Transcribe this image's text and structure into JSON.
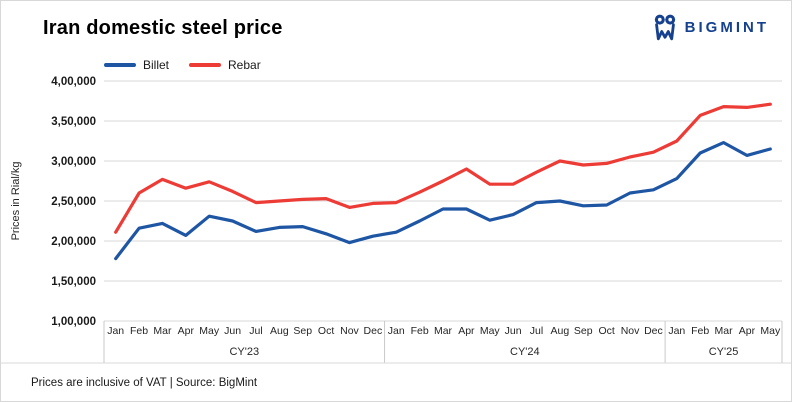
{
  "header": {
    "title": "Iran domestic steel price",
    "brand": "BIGMINT",
    "brand_color": "#15418f"
  },
  "footer": {
    "note": "Prices are inclusive of VAT |  Source: BigMint"
  },
  "chart_data": {
    "type": "line",
    "title": "Iran domestic steel price",
    "xlabel": "",
    "ylabel": "Prices in Rial/kg",
    "ylim": [
      100000,
      400000
    ],
    "ytick_interval": 50000,
    "ytick_labels": [
      "4,00,000",
      "3,50,000",
      "3,00,000",
      "2,50,000",
      "2,00,000",
      "1,50,000",
      "1,00,000"
    ],
    "grid": "horizontal",
    "grid_color": "#d9d9d9",
    "axis_border_color": "#c9c9c9",
    "tick_text_color": "#1a1a1a",
    "legend_position": "top-left",
    "sections": [
      {
        "label": "CY'23",
        "months": [
          "Jan",
          "Feb",
          "Mar",
          "Apr",
          "May",
          "Jun",
          "Jul",
          "Aug",
          "Sep",
          "Oct",
          "Nov",
          "Dec"
        ]
      },
      {
        "label": "CY'24",
        "months": [
          "Jan",
          "Feb",
          "Mar",
          "Apr",
          "May",
          "Jun",
          "Jul",
          "Aug",
          "Sep",
          "Oct",
          "Nov",
          "Dec"
        ]
      },
      {
        "label": "CY'25",
        "months": [
          "Jan",
          "Feb",
          "Mar",
          "Apr",
          "May"
        ]
      }
    ],
    "series": [
      {
        "name": "Billet",
        "color": "#1e56a4",
        "values": [
          178000,
          216000,
          222000,
          207000,
          231000,
          225000,
          212000,
          217000,
          218000,
          209000,
          198000,
          206000,
          211000,
          225000,
          240000,
          240000,
          226000,
          233000,
          248000,
          250000,
          244000,
          245000,
          260000,
          264000,
          278000,
          310000,
          323000,
          307000,
          315000
        ]
      },
      {
        "name": "Rebar",
        "color": "#ed3b36",
        "values": [
          211000,
          260000,
          277000,
          266000,
          274000,
          262000,
          248000,
          250000,
          252000,
          253000,
          242000,
          247000,
          248000,
          261000,
          275000,
          290000,
          271000,
          271000,
          286000,
          300000,
          295000,
          297000,
          305000,
          311000,
          325000,
          357000,
          368000,
          367000,
          371000
        ]
      }
    ]
  }
}
